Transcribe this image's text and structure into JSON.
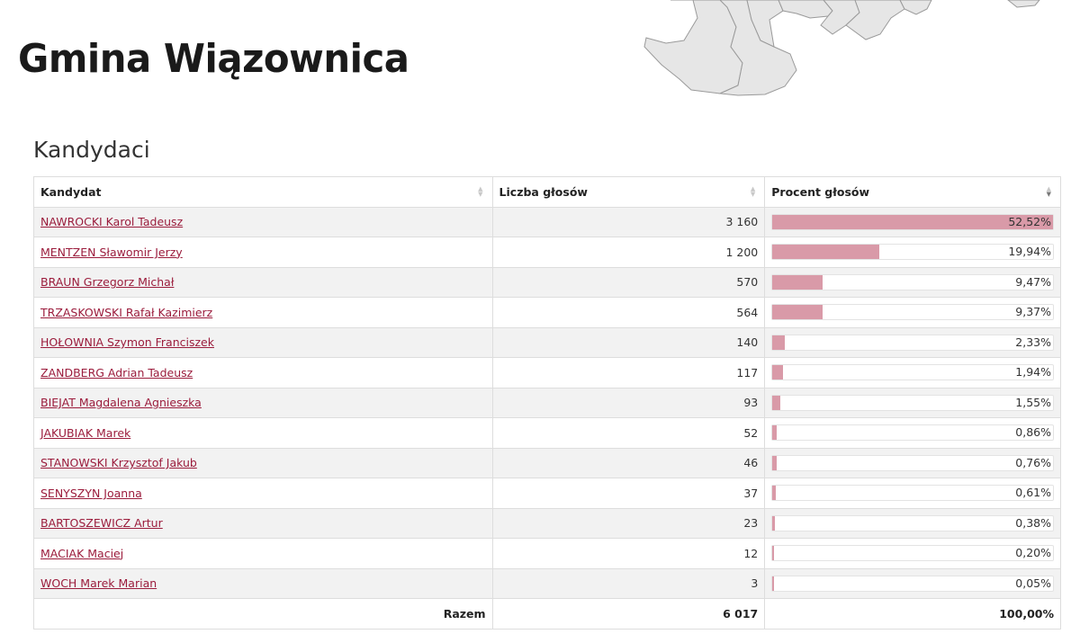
{
  "header": {
    "title": "Gmina Wiązownica"
  },
  "section": {
    "heading": "Kandydaci"
  },
  "table": {
    "columns": [
      "Kandydat",
      "Liczba głosów",
      "Procent głosów"
    ],
    "sorted_column": "Procent głosów",
    "sort_direction": "descending",
    "rows": [
      {
        "name": "NAWROCKI Karol Tadeusz",
        "votes": "3 160",
        "percent": "52,52%",
        "fraction": 0.5252
      },
      {
        "name": "MENTZEN Sławomir Jerzy",
        "votes": "1 200",
        "percent": "19,94%",
        "fraction": 0.1994
      },
      {
        "name": "BRAUN Grzegorz Michał",
        "votes": "570",
        "percent": "9,47%",
        "fraction": 0.0947
      },
      {
        "name": "TRZASKOWSKI Rafał Kazimierz",
        "votes": "564",
        "percent": "9,37%",
        "fraction": 0.0937
      },
      {
        "name": "HOŁOWNIA Szymon Franciszek",
        "votes": "140",
        "percent": "2,33%",
        "fraction": 0.0233
      },
      {
        "name": "ZANDBERG Adrian Tadeusz",
        "votes": "117",
        "percent": "1,94%",
        "fraction": 0.0194
      },
      {
        "name": "BIEJAT Magdalena Agnieszka",
        "votes": "93",
        "percent": "1,55%",
        "fraction": 0.0155
      },
      {
        "name": "JAKUBIAK Marek",
        "votes": "52",
        "percent": "0,86%",
        "fraction": 0.0086
      },
      {
        "name": "STANOWSKI Krzysztof Jakub",
        "votes": "46",
        "percent": "0,76%",
        "fraction": 0.0076
      },
      {
        "name": "SENYSZYN Joanna",
        "votes": "37",
        "percent": "0,61%",
        "fraction": 0.0061
      },
      {
        "name": "BARTOSZEWICZ Artur",
        "votes": "23",
        "percent": "0,38%",
        "fraction": 0.0038
      },
      {
        "name": "MACIAK Maciej",
        "votes": "12",
        "percent": "0,20%",
        "fraction": 0.002
      },
      {
        "name": "WOCH Marek Marian",
        "votes": "3",
        "percent": "0,05%",
        "fraction": 0.0005
      }
    ],
    "footer": {
      "label": "Razem",
      "votes": "6 017",
      "percent": "100,00%"
    }
  },
  "colors": {
    "bar": "#d99aa8",
    "link": "#9b1c3c",
    "stripe": "#f2f2f2",
    "map_fill": "#e6e6e6",
    "map_stroke": "#9a9a9a"
  }
}
